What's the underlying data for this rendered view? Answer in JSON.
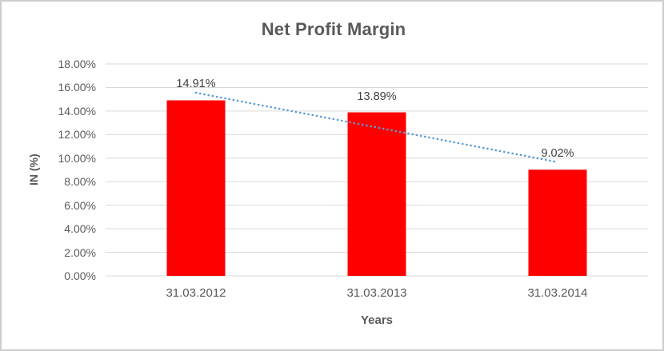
{
  "window": {
    "background": "#FFFFFF",
    "border_color": "#CCCCCC"
  },
  "chart_data": {
    "type": "bar",
    "title": "Net Profit Margin",
    "xlabel": "Years",
    "ylabel": "IN (%)",
    "categories": [
      "31.03.2012",
      "31.03.2013",
      "31.03.2014"
    ],
    "values": [
      14.91,
      13.89,
      9.02
    ],
    "data_labels": [
      "14.91%",
      "13.89%",
      "9.02%"
    ],
    "y_ticks": [
      "0.00%",
      "2.00%",
      "4.00%",
      "6.00%",
      "8.00%",
      "10.00%",
      "12.00%",
      "14.00%",
      "16.00%",
      "18.00%"
    ],
    "ylim": [
      0,
      18
    ],
    "y_step": 2,
    "grid": true,
    "legend": "none",
    "bar_color": "#FF0000",
    "trendline": {
      "type": "linear",
      "style": "dotted",
      "color": "#5B9BD5"
    },
    "colors": {
      "title": "#595959",
      "axis_title": "#595959",
      "tick_label": "#595959",
      "data_label": "#404040",
      "gridline": "#D9D9D9",
      "axis_line": "#D9D9D9"
    }
  }
}
